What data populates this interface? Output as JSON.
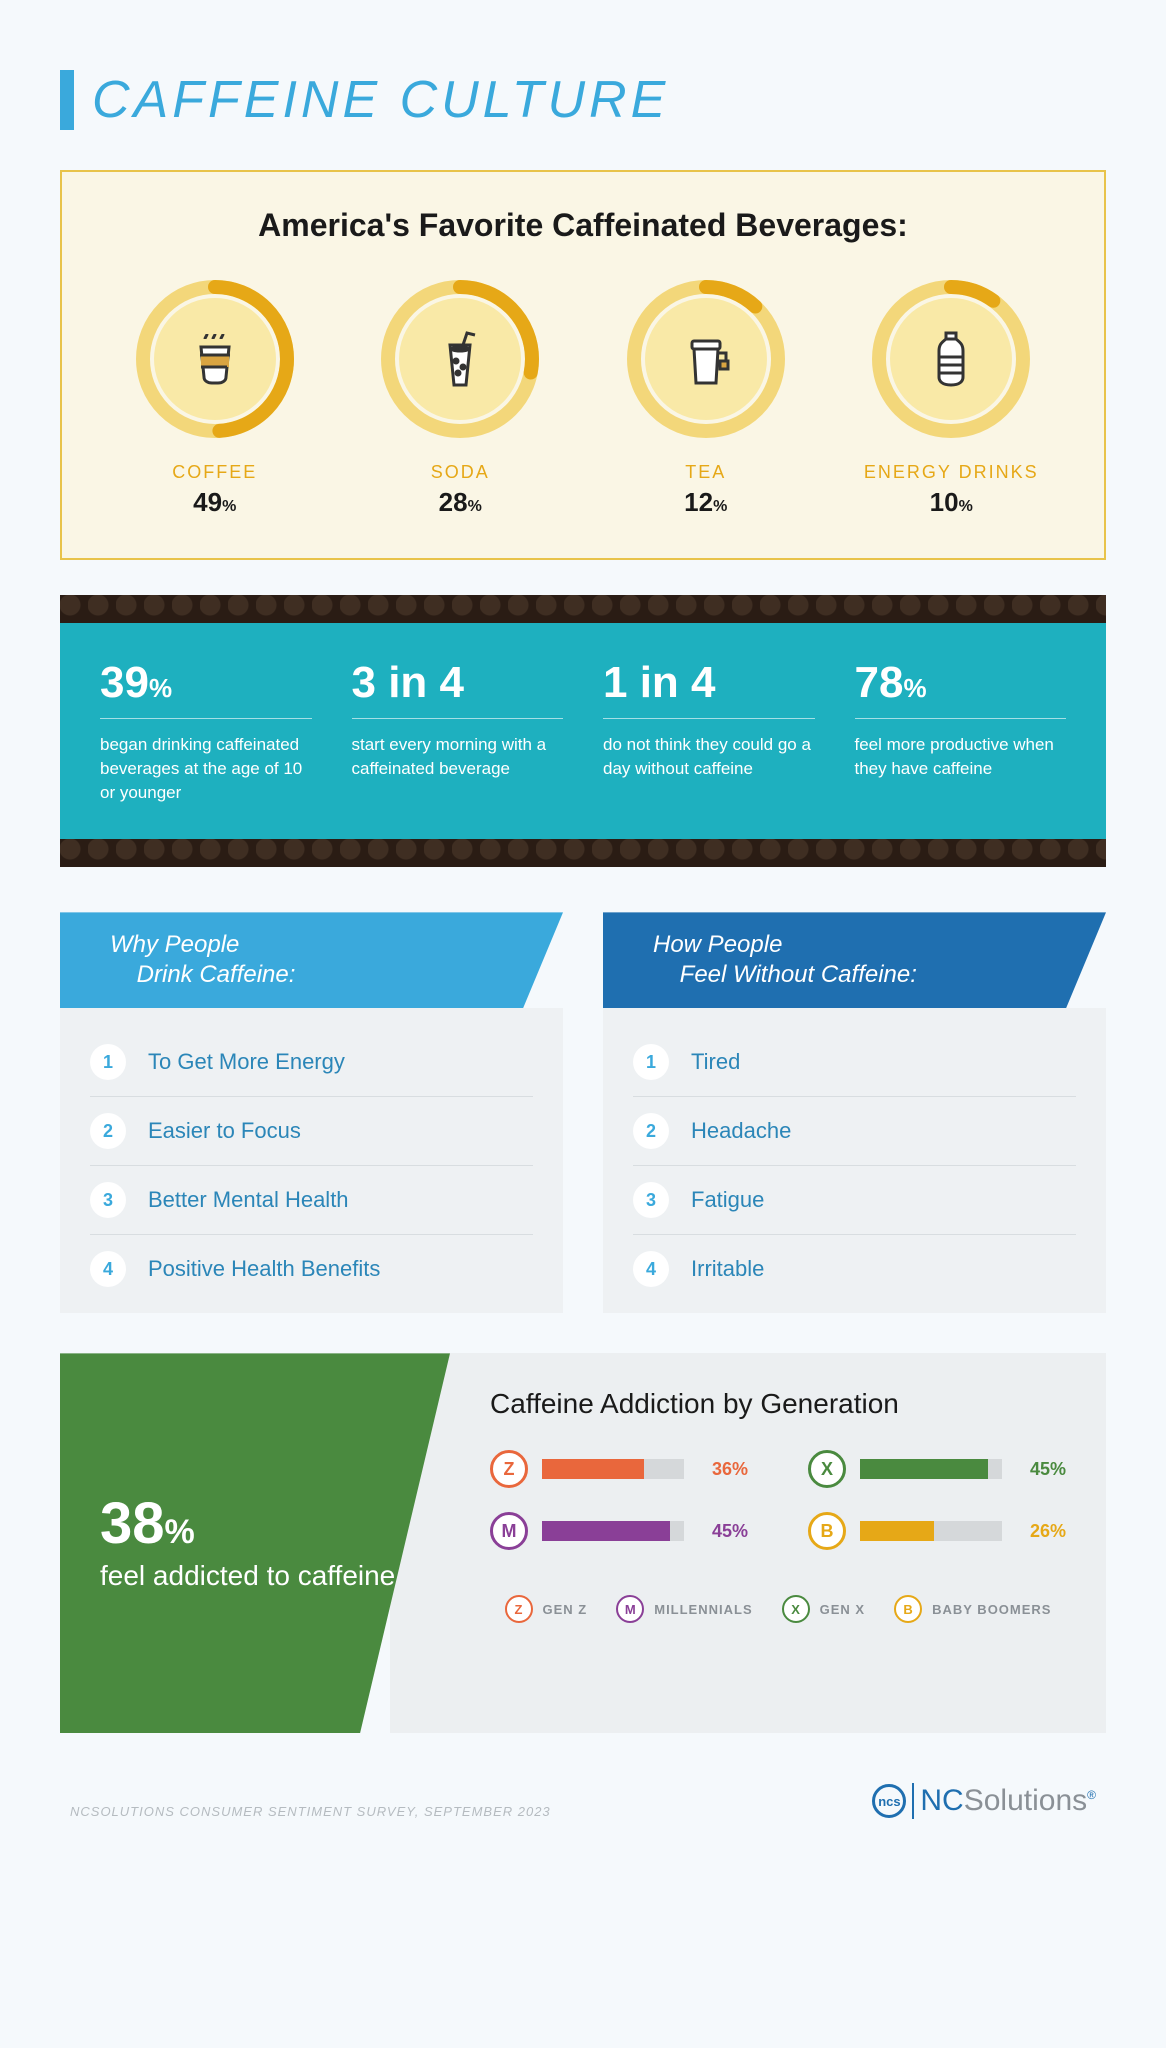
{
  "colors": {
    "page_bg": "#f5f9fc",
    "title_blue": "#3aa9dc",
    "bev_border": "#e8c34a",
    "bev_bg": "#faf6e5",
    "donut_inner": "#f9e9a7",
    "donut_track": "#f3d77a",
    "donut_progress": "#e6a817",
    "bev_label": "#e6a817",
    "teal": "#1eb0bf",
    "beans_bg": "#3a2a20",
    "header_light": "#3aa9dc",
    "header_dark": "#1f6fb0",
    "list_bg": "#eef1f3",
    "list_text": "#2b86b8",
    "green": "#4a8a3f",
    "panel_bg": "#eceff1",
    "bar_track": "#d5d8da",
    "footer_gray": "#b5bbc0"
  },
  "title": "CAFFEINE CULTURE",
  "beverages": {
    "heading": "America's Favorite Caffeinated Beverages:",
    "items": [
      {
        "label": "COFFEE",
        "pct": 49,
        "icon": "coffee"
      },
      {
        "label": "SODA",
        "pct": 28,
        "icon": "soda"
      },
      {
        "label": "TEA",
        "pct": 12,
        "icon": "tea"
      },
      {
        "label": "ENERGY DRINKS",
        "pct": 10,
        "icon": "bottle"
      }
    ]
  },
  "teal_stats": [
    {
      "value": "39",
      "unit": "%",
      "desc": "began drinking caffeinated beverages at the age of 10 or younger"
    },
    {
      "value": "3 in 4",
      "unit": "",
      "desc": "start every morning with a caffeinated beverage"
    },
    {
      "value": "1 in 4",
      "unit": "",
      "desc": "do not think they could go a day without caffeine"
    },
    {
      "value": "78",
      "unit": "%",
      "desc": "feel more productive when they have caffeine"
    }
  ],
  "list_left": {
    "heading_l1": "Why People",
    "heading_l2": "Drink Caffeine:",
    "items": [
      "To Get More Energy",
      "Easier to Focus",
      "Better Mental Health",
      "Positive Health Benefits"
    ]
  },
  "list_right": {
    "heading_l1": "How People",
    "heading_l2": "Feel Without Caffeine:",
    "items": [
      "Tired",
      "Headache",
      "Fatigue",
      "Irritable"
    ]
  },
  "addiction": {
    "big_value": "38",
    "big_unit": "%",
    "big_sub": "feel addicted to caffeine",
    "title": "Caffeine Addiction by Generation",
    "bars": [
      {
        "key": "Z",
        "pct": 36,
        "color": "#e9673c",
        "pct_color": "#e9673c"
      },
      {
        "key": "X",
        "pct": 45,
        "color": "#4a8a3f",
        "pct_color": "#4a8a3f"
      },
      {
        "key": "M",
        "pct": 45,
        "color": "#8a3f97",
        "pct_color": "#8a3f97"
      },
      {
        "key": "B",
        "pct": 26,
        "color": "#e6a817",
        "pct_color": "#e6a817"
      }
    ],
    "legend": [
      {
        "key": "Z",
        "label": "GEN Z",
        "color": "#e9673c"
      },
      {
        "key": "M",
        "label": "MILLENNIALS",
        "color": "#8a3f97"
      },
      {
        "key": "X",
        "label": "GEN X",
        "color": "#4a8a3f"
      },
      {
        "key": "B",
        "label": "BABY BOOMERS",
        "color": "#e6a817"
      }
    ]
  },
  "footer": {
    "source": "NCSOLUTIONS CONSUMER SENTIMENT SURVEY, SEPTEMBER 2023",
    "logo_badge": "ncs",
    "logo_main": "NC",
    "logo_rest": "Solutions",
    "logo_reg": "®"
  }
}
